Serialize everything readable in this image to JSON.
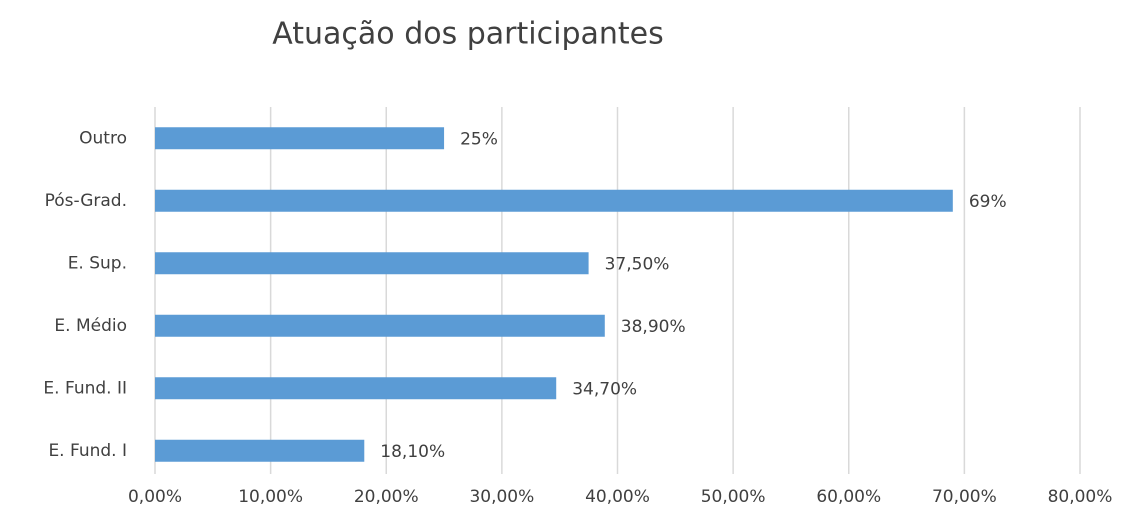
{
  "chart_data": {
    "type": "barh",
    "title": "Atuação dos participantes",
    "categories": [
      "Outro",
      "Pós-Grad.",
      "E. Sup.",
      "E. Médio",
      "E. Fund. II",
      "E. Fund. I"
    ],
    "values": [
      25,
      69,
      37.5,
      38.9,
      34.7,
      18.1
    ],
    "value_labels": [
      "25%",
      "69%",
      "37,50%",
      "38,90%",
      "34,70%",
      "18,10%"
    ],
    "color": "#5b9bd5",
    "xlim": [
      0,
      80
    ],
    "xticks": [
      {
        "value": 0,
        "label": "0,00%"
      },
      {
        "value": 10,
        "label": "10,00%"
      },
      {
        "value": 20,
        "label": "20,00%"
      },
      {
        "value": 30,
        "label": "30,00%"
      },
      {
        "value": 40,
        "label": "40,00%"
      },
      {
        "value": 50,
        "label": "50,00%"
      },
      {
        "value": 60,
        "label": "60,00%"
      },
      {
        "value": 70,
        "label": "70,00%"
      },
      {
        "value": 80,
        "label": "80,00%"
      }
    ],
    "grid": true
  }
}
